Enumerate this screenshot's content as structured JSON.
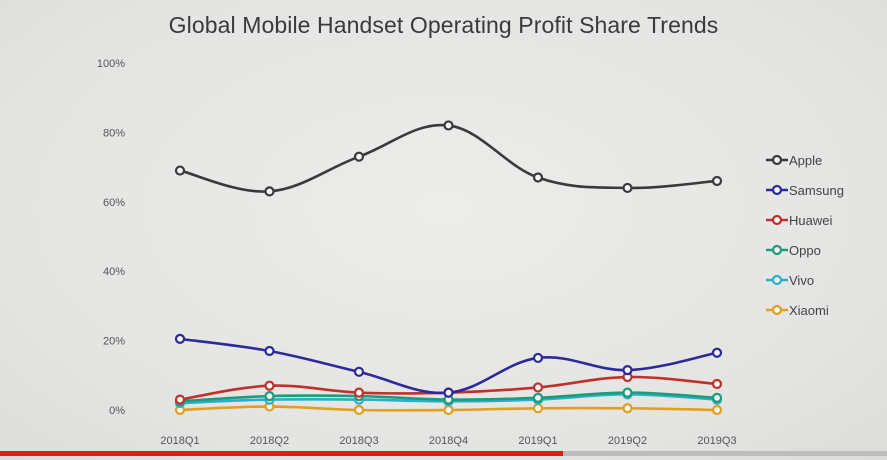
{
  "chart_data": {
    "type": "line",
    "title": "Global Mobile Handset Operating Profit Share Trends",
    "categories": [
      "2018Q1",
      "2018Q2",
      "2018Q3",
      "2018Q4",
      "2019Q1",
      "2019Q2",
      "2019Q3"
    ],
    "y_ticks": [
      "100%",
      "80%",
      "60%",
      "40%",
      "20%",
      "0%"
    ],
    "ylim": [
      0,
      100
    ],
    "grid": false,
    "legend_position": "right",
    "series": [
      {
        "name": "Apple",
        "color": "#3a3a3a",
        "values": [
          69,
          63,
          73,
          82,
          67,
          64,
          66
        ]
      },
      {
        "name": "Samsung",
        "color": "#2a2a9a",
        "values": [
          20.5,
          17,
          11,
          5,
          15,
          11.5,
          16.5
        ]
      },
      {
        "name": "Huawei",
        "color": "#c0302c",
        "values": [
          3,
          7,
          5,
          5,
          6.5,
          9.5,
          7.5
        ]
      },
      {
        "name": "Oppo",
        "color": "#1f9a7a",
        "values": [
          2.5,
          4,
          4,
          3,
          3.5,
          5,
          3.5
        ]
      },
      {
        "name": "Vivo",
        "color": "#2ab0c8",
        "values": [
          2,
          3,
          3,
          2.5,
          3,
          4.5,
          3
        ]
      },
      {
        "name": "Xiaomi",
        "color": "#e0a020",
        "values": [
          0,
          1,
          0,
          0,
          0.5,
          0.5,
          0
        ]
      }
    ]
  },
  "video": {
    "progress": 0.635
  }
}
